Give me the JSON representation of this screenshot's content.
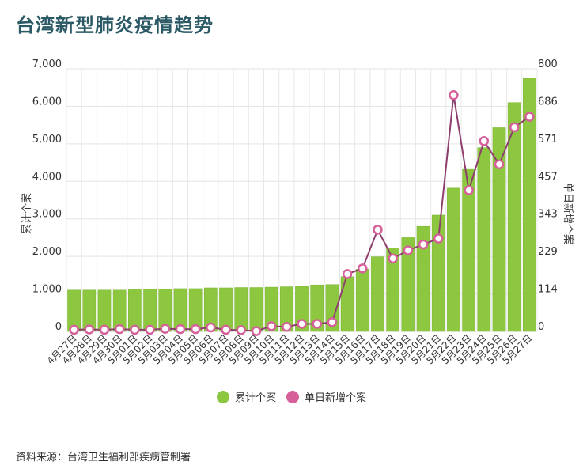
{
  "title": "台湾新型肺炎疫情趋势",
  "source": "资料来源：台湾卫生福利部疾病管制署",
  "colors": {
    "bar": "#8dc63f",
    "bar_edge": "#7ab52f",
    "line": "#8e3e6e",
    "point": "#d6609a",
    "title": "#2b5a66"
  },
  "chart_data": {
    "type": "bar",
    "title": "台湾新型肺炎疫情趋势",
    "ylabel": "累计个案",
    "y2label": "单日新增个案",
    "ylim": [
      0,
      7000
    ],
    "y2lim": [
      0,
      800
    ],
    "yticks": [
      "0",
      "1,000",
      "2,000",
      "3,000",
      "4,000",
      "5,000",
      "6,000",
      "7,000"
    ],
    "y2ticks": [
      "0",
      "114",
      "229",
      "343",
      "457",
      "571",
      "686",
      "800"
    ],
    "grid": true,
    "legend_position": "bottom",
    "categories": [
      "4月27日",
      "4月28日",
      "4月29日",
      "4月30日",
      "5月01日",
      "5月02日",
      "5月03日",
      "5月04日",
      "5月05日",
      "5月06日",
      "5月07日",
      "5月08日",
      "5月09日",
      "5月10日",
      "5月11日",
      "5月12日",
      "5月13日",
      "5月14日",
      "5月15日",
      "5月16日",
      "5月17日",
      "5月18日",
      "5月19日",
      "5月20日",
      "5月21日",
      "5月22日",
      "5月23日",
      "5月24日",
      "5月25日",
      "5月26日",
      "5月27日"
    ],
    "series": [
      {
        "name": "累计个案",
        "type": "bar",
        "axis": "left",
        "values": [
          1100,
          1100,
          1100,
          1100,
          1110,
          1120,
          1120,
          1140,
          1140,
          1160,
          1160,
          1170,
          1170,
          1180,
          1190,
          1200,
          1240,
          1250,
          1460,
          1660,
          1990,
          2220,
          2500,
          2800,
          3100,
          3820,
          4320,
          4900,
          5430,
          6100,
          6750
        ]
      },
      {
        "name": "单日新增个案",
        "type": "line",
        "axis": "right",
        "values": [
          5,
          6,
          5,
          7,
          5,
          5,
          8,
          7,
          7,
          12,
          5,
          4,
          1,
          16,
          14,
          23,
          23,
          28,
          175,
          192,
          310,
          222,
          247,
          265,
          283,
          720,
          430,
          580,
          509,
          622,
          654
        ]
      }
    ]
  }
}
